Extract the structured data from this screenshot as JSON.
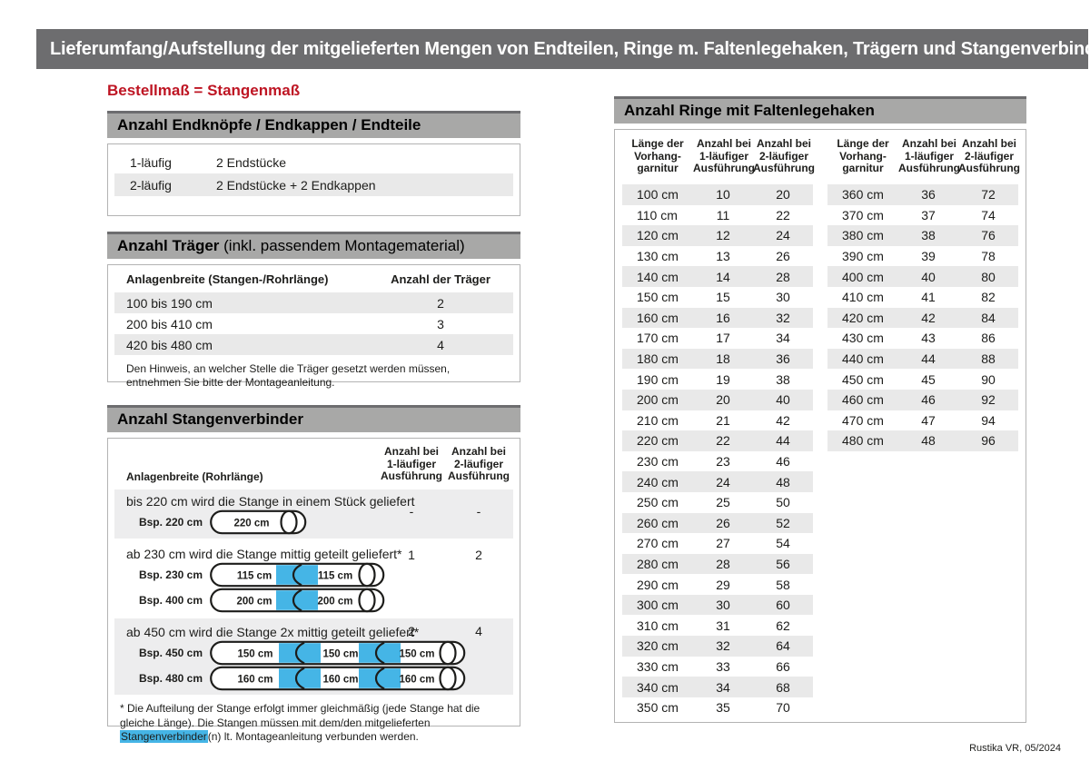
{
  "page": {
    "title": "Lieferumfang/Aufstellung der mitgelieferten Mengen von Endteilen, Ringe m. Faltenlegehaken, Trägern und Stangenverbindern:",
    "subtitle": "Bestellmaß = Stangenmaß",
    "footer": "Rustika VR, 05/2024"
  },
  "colors": {
    "accent_red": "#be1523",
    "connector_blue": "#45b5e6",
    "titlebar_gray": "#6d6d6f",
    "section_header_gray": "#a8a8a7",
    "row_stripe_gray": "#e9e9e9",
    "block_gray": "#ededee",
    "border_gray": "#b3b3b3"
  },
  "endteile": {
    "header": "Anzahl Endknöpfe / Endkappen / Endteile",
    "rows": [
      [
        "1-läufig",
        "2 Endstücke"
      ],
      [
        "2-läufig",
        "2 Endstücke + 2 Endkappen"
      ]
    ]
  },
  "traeger": {
    "header_bold": "Anzahl Träger",
    "header_rest": " (inkl. passendem Montagematerial)",
    "col1": "Anlagenbreite (Stangen-/Rohrlänge)",
    "col2": "Anzahl der Träger",
    "rows": [
      [
        "100 bis 190 cm",
        "2"
      ],
      [
        "200 bis 410 cm",
        "3"
      ],
      [
        "420 bis 480 cm",
        "4"
      ]
    ],
    "note": "Den Hinweis, an welcher Stelle die Träger gesetzt werden müssen, entnehmen Sie bitte der Montageanleitung."
  },
  "verbinder": {
    "header": "Anzahl Stangenverbinder",
    "col1": "Anlagenbreite (Rohrlänge)",
    "col2": "Anzahl bei 1-läufiger Ausführung",
    "col3": "Anzahl bei 2-läufiger Ausführung",
    "blocks": [
      {
        "text": "bis 220 cm wird die Stange in einem Stück geliefert",
        "v1": "-",
        "v2": "-",
        "rods": [
          {
            "label": "Bsp. 220 cm",
            "seg1": "220 cm"
          }
        ]
      },
      {
        "text": "ab 230 cm wird die Stange mittig geteilt geliefert*",
        "v1": "1",
        "v2": "2",
        "rods": [
          {
            "label": "Bsp. 230 cm",
            "seg1": "115 cm",
            "seg2": "115 cm"
          },
          {
            "label": "Bsp. 400 cm",
            "seg1": "200 cm",
            "seg2": "200 cm"
          }
        ]
      },
      {
        "text": "ab 450 cm wird die Stange 2x mittig geteilt geliefert*",
        "v1": "2",
        "v2": "4",
        "rods": [
          {
            "label": "Bsp. 450 cm",
            "seg1": "150 cm",
            "seg2": "150 cm",
            "seg3": "150 cm"
          },
          {
            "label": "Bsp. 480 cm",
            "seg1": "160 cm",
            "seg2": "160 cm",
            "seg3": "160 cm"
          }
        ]
      }
    ],
    "footnote_pre": "* Die Aufteilung der Stange erfolgt immer gleichmäßig (jede Stange hat die gleiche Länge). Die Stangen müssen mit dem/den mitgelieferten ",
    "footnote_highlight": "Stangenverbinder",
    "footnote_post": "(n) lt. Montageanleitung verbunden werden."
  },
  "ringe": {
    "header": "Anzahl Ringe mit Faltenlegehaken",
    "col_length": "Länge der Vorhang-garnitur",
    "col_one": "Anzahl bei 1-läufiger Ausführung",
    "col_two": "Anzahl bei 2-läufiger Ausführung",
    "table1": [
      [
        "100 cm",
        "10",
        "20"
      ],
      [
        "110 cm",
        "11",
        "22"
      ],
      [
        "120 cm",
        "12",
        "24"
      ],
      [
        "130 cm",
        "13",
        "26"
      ],
      [
        "140 cm",
        "14",
        "28"
      ],
      [
        "150 cm",
        "15",
        "30"
      ],
      [
        "160 cm",
        "16",
        "32"
      ],
      [
        "170 cm",
        "17",
        "34"
      ],
      [
        "180 cm",
        "18",
        "36"
      ],
      [
        "190 cm",
        "19",
        "38"
      ],
      [
        "200 cm",
        "20",
        "40"
      ],
      [
        "210 cm",
        "21",
        "42"
      ],
      [
        "220 cm",
        "22",
        "44"
      ],
      [
        "230 cm",
        "23",
        "46"
      ],
      [
        "240 cm",
        "24",
        "48"
      ],
      [
        "250 cm",
        "25",
        "50"
      ],
      [
        "260 cm",
        "26",
        "52"
      ],
      [
        "270 cm",
        "27",
        "54"
      ],
      [
        "280 cm",
        "28",
        "56"
      ],
      [
        "290 cm",
        "29",
        "58"
      ],
      [
        "300 cm",
        "30",
        "60"
      ],
      [
        "310 cm",
        "31",
        "62"
      ],
      [
        "320 cm",
        "32",
        "64"
      ],
      [
        "330 cm",
        "33",
        "66"
      ],
      [
        "340 cm",
        "34",
        "68"
      ],
      [
        "350 cm",
        "35",
        "70"
      ]
    ],
    "table2": [
      [
        "360 cm",
        "36",
        "72"
      ],
      [
        "370 cm",
        "37",
        "74"
      ],
      [
        "380 cm",
        "38",
        "76"
      ],
      [
        "390 cm",
        "39",
        "78"
      ],
      [
        "400 cm",
        "40",
        "80"
      ],
      [
        "410 cm",
        "41",
        "82"
      ],
      [
        "420 cm",
        "42",
        "84"
      ],
      [
        "430 cm",
        "43",
        "86"
      ],
      [
        "440 cm",
        "44",
        "88"
      ],
      [
        "450 cm",
        "45",
        "90"
      ],
      [
        "460 cm",
        "46",
        "92"
      ],
      [
        "470 cm",
        "47",
        "94"
      ],
      [
        "480 cm",
        "48",
        "96"
      ]
    ]
  }
}
